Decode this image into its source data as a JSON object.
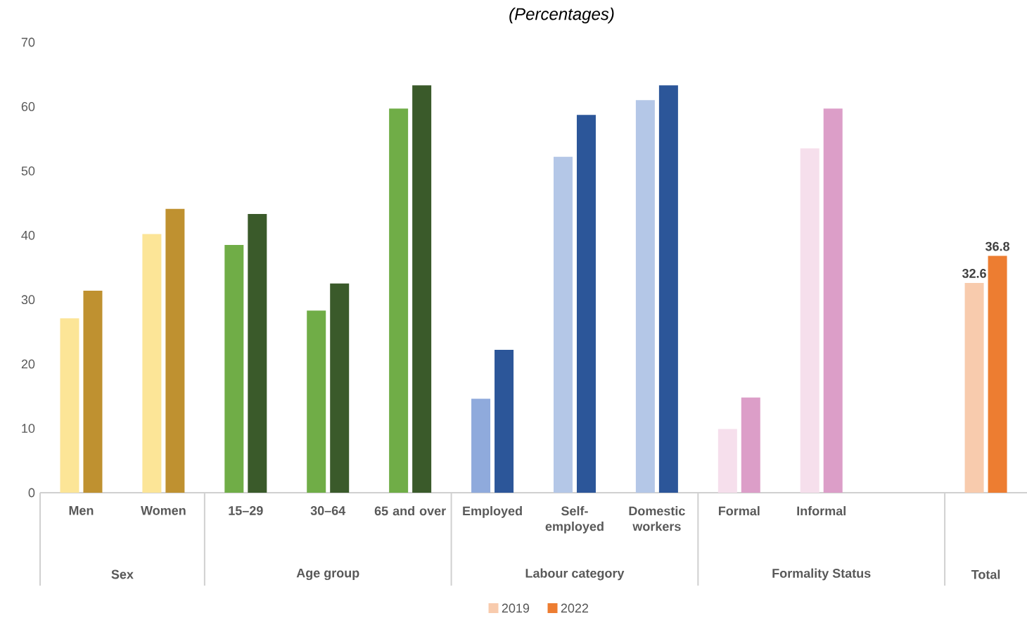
{
  "chart_data": {
    "type": "bar",
    "title": "(Percentages)",
    "categories": [
      "Men",
      "Women",
      "15–29",
      "30–64",
      "65 and over",
      "Employed",
      "Self-employed",
      "Domestic workers",
      "Formal",
      "Informal",
      null,
      null
    ],
    "series": [
      {
        "name": "2019",
        "values": [
          27.1,
          40.2,
          38.5,
          28.3,
          59.7,
          14.6,
          52.2,
          61.0,
          9.9,
          53.5,
          null,
          32.6
        ],
        "colors": [
          "#fce597",
          "#fce597",
          "#70ad47",
          "#70ad47",
          "#70ad47",
          "#8faadc",
          "#b4c7e7",
          "#b4c7e7",
          "#f6dfec",
          "#f6dfec",
          "#f6dfec",
          "#f8cbad"
        ],
        "value_labels": [
          null,
          null,
          null,
          null,
          null,
          null,
          null,
          null,
          null,
          null,
          null,
          "32.6"
        ]
      },
      {
        "name": "2022",
        "values": [
          31.4,
          44.1,
          43.3,
          32.5,
          63.3,
          22.2,
          58.7,
          63.3,
          14.8,
          59.7,
          null,
          36.8
        ],
        "colors": [
          "#bf9130",
          "#bf9130",
          "#3a5a2a",
          "#3a5a2a",
          "#3a5a2a",
          "#2c5699",
          "#2c5699",
          "#2c5699",
          "#dc9ec8",
          "#dc9ec8",
          "#dc9ec8",
          "#ed7d31"
        ],
        "value_labels": [
          null,
          null,
          null,
          null,
          null,
          null,
          null,
          null,
          null,
          null,
          null,
          "36.8"
        ]
      }
    ],
    "ylim": [
      0,
      70
    ],
    "yticks": [
      0,
      10,
      20,
      30,
      40,
      50,
      60,
      70
    ],
    "legend": "bottom",
    "annotations": [
      "Sex",
      "Age group",
      "Labour category",
      "Formality Status",
      "Total"
    ]
  }
}
